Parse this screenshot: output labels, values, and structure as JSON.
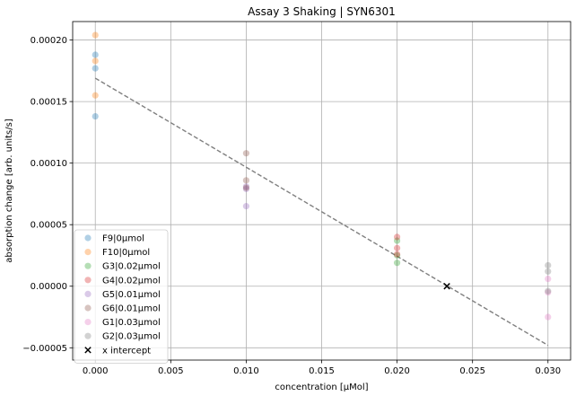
{
  "chart_data": {
    "type": "scatter",
    "title": "Assay 3 Shaking | SYN6301",
    "xlabel": "concentration [µMol]",
    "ylabel": "absorption change [arb. units/s]",
    "xlim": [
      -0.0015,
      0.0315
    ],
    "ylim": [
      -6e-05,
      0.000215
    ],
    "xticks": [
      "0.000",
      "0.005",
      "0.010",
      "0.015",
      "0.020",
      "0.025",
      "0.030"
    ],
    "xtick_values": [
      0,
      0.005,
      0.01,
      0.015,
      0.02,
      0.025,
      0.03
    ],
    "yticks": [
      "−0.00005",
      "0.00000",
      "0.00005",
      "0.00010",
      "0.00015",
      "0.00020"
    ],
    "ytick_values": [
      -5e-05,
      0,
      5e-05,
      0.0001,
      0.00015,
      0.0002
    ],
    "grid": true,
    "legend_position": "lower-left",
    "series": [
      {
        "name": "F9|0µmol",
        "color": "#1f77b4",
        "x": [
          0,
          0,
          0
        ],
        "y": [
          0.000188,
          0.000177,
          0.000138
        ]
      },
      {
        "name": "F10|0µmol",
        "color": "#ff7f0e",
        "x": [
          0,
          0,
          0
        ],
        "y": [
          0.000204,
          0.000183,
          0.000155
        ]
      },
      {
        "name": "G3|0.02µmol",
        "color": "#2ca02c",
        "x": [
          0.02,
          0.02,
          0.02
        ],
        "y": [
          3.7e-05,
          2.5e-05,
          1.9e-05
        ]
      },
      {
        "name": "G4|0.02µmol",
        "color": "#d62728",
        "x": [
          0.02,
          0.02,
          0.02
        ],
        "y": [
          4e-05,
          3.1e-05,
          2.6e-05
        ]
      },
      {
        "name": "G5|0.01µmol",
        "color": "#9467bd",
        "x": [
          0.01,
          0.01,
          0.01
        ],
        "y": [
          8.1e-05,
          7.9e-05,
          6.5e-05
        ]
      },
      {
        "name": "G6|0.01µmol",
        "color": "#8c564b",
        "x": [
          0.01,
          0.01,
          0.01
        ],
        "y": [
          0.000108,
          8.6e-05,
          8e-05
        ]
      },
      {
        "name": "G1|0.03µmol",
        "color": "#e377c2",
        "x": [
          0.03,
          0.03,
          0.03
        ],
        "y": [
          6e-06,
          -5e-06,
          -2.5e-05
        ]
      },
      {
        "name": "G2|0.03µmol",
        "color": "#7f7f7f",
        "x": [
          0.03,
          0.03,
          0.03
        ],
        "y": [
          1.7e-05,
          1.2e-05,
          -4e-06
        ]
      }
    ],
    "fit_line": {
      "x": [
        0,
        0.03
      ],
      "y": [
        0.000169,
        -4.8e-05
      ],
      "color": "#7f7f7f",
      "style": "dashed"
    },
    "x_intercept": {
      "name": "x intercept",
      "x": 0.0233,
      "y": 0,
      "marker": "x",
      "color": "#000000"
    }
  }
}
